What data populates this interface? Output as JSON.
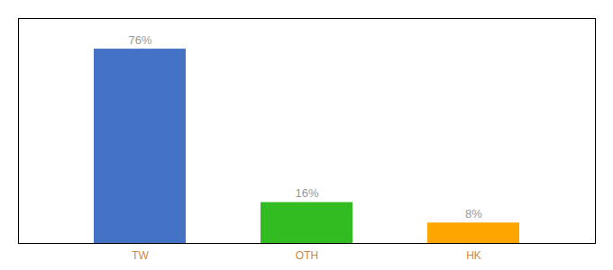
{
  "chart_data": {
    "type": "bar",
    "categories": [
      "TW",
      "OTH",
      "HK"
    ],
    "values": [
      76,
      16,
      8
    ],
    "value_labels": [
      "76%",
      "16%",
      "8%"
    ],
    "colors": [
      "#4472C4",
      "#33BB22",
      "#FFA500"
    ],
    "ylim": [
      0,
      88
    ],
    "yticks": [],
    "data_labels": true,
    "tick_labels": "x",
    "grid": false
  }
}
